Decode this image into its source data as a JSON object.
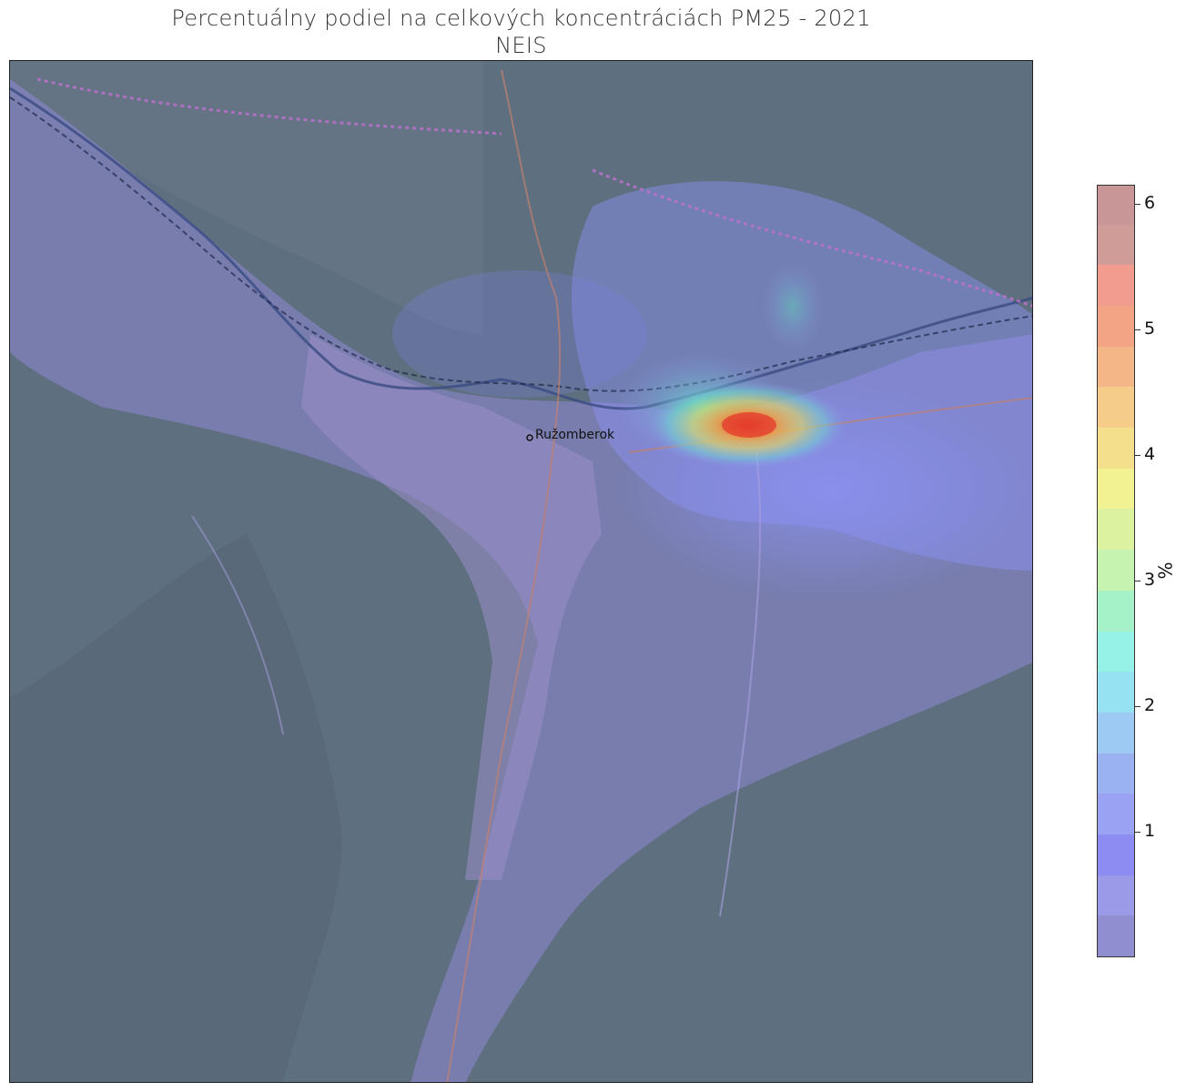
{
  "title": {
    "line1": "Percentuálny podiel na celkových koncentráciách PM25 - 2021",
    "line2": "NEIS"
  },
  "map": {
    "city_label": "Ružomberok",
    "hotspot_color": "#e63a2a",
    "base_color": "#5e6f7f",
    "overlay_color": "#8e88d6"
  },
  "colorbar": {
    "unit": "%",
    "min": 0.0,
    "max": 6.15,
    "ticks": [
      "1",
      "2",
      "3",
      "4",
      "5",
      "6"
    ],
    "tick_values": [
      1,
      2,
      3,
      4,
      5,
      6
    ],
    "bands": [
      "#8e8ed0",
      "#9a9ae8",
      "#8c8cf2",
      "#9aa2f4",
      "#9ab2f2",
      "#9ccaf2",
      "#96e2f2",
      "#96f2e6",
      "#a6f2c8",
      "#c6f4b0",
      "#dcf2a0",
      "#f2f292",
      "#f4e08c",
      "#f6cc8a",
      "#f4b686",
      "#f2a484",
      "#f29c90",
      "#d09c98",
      "#c89696"
    ]
  }
}
